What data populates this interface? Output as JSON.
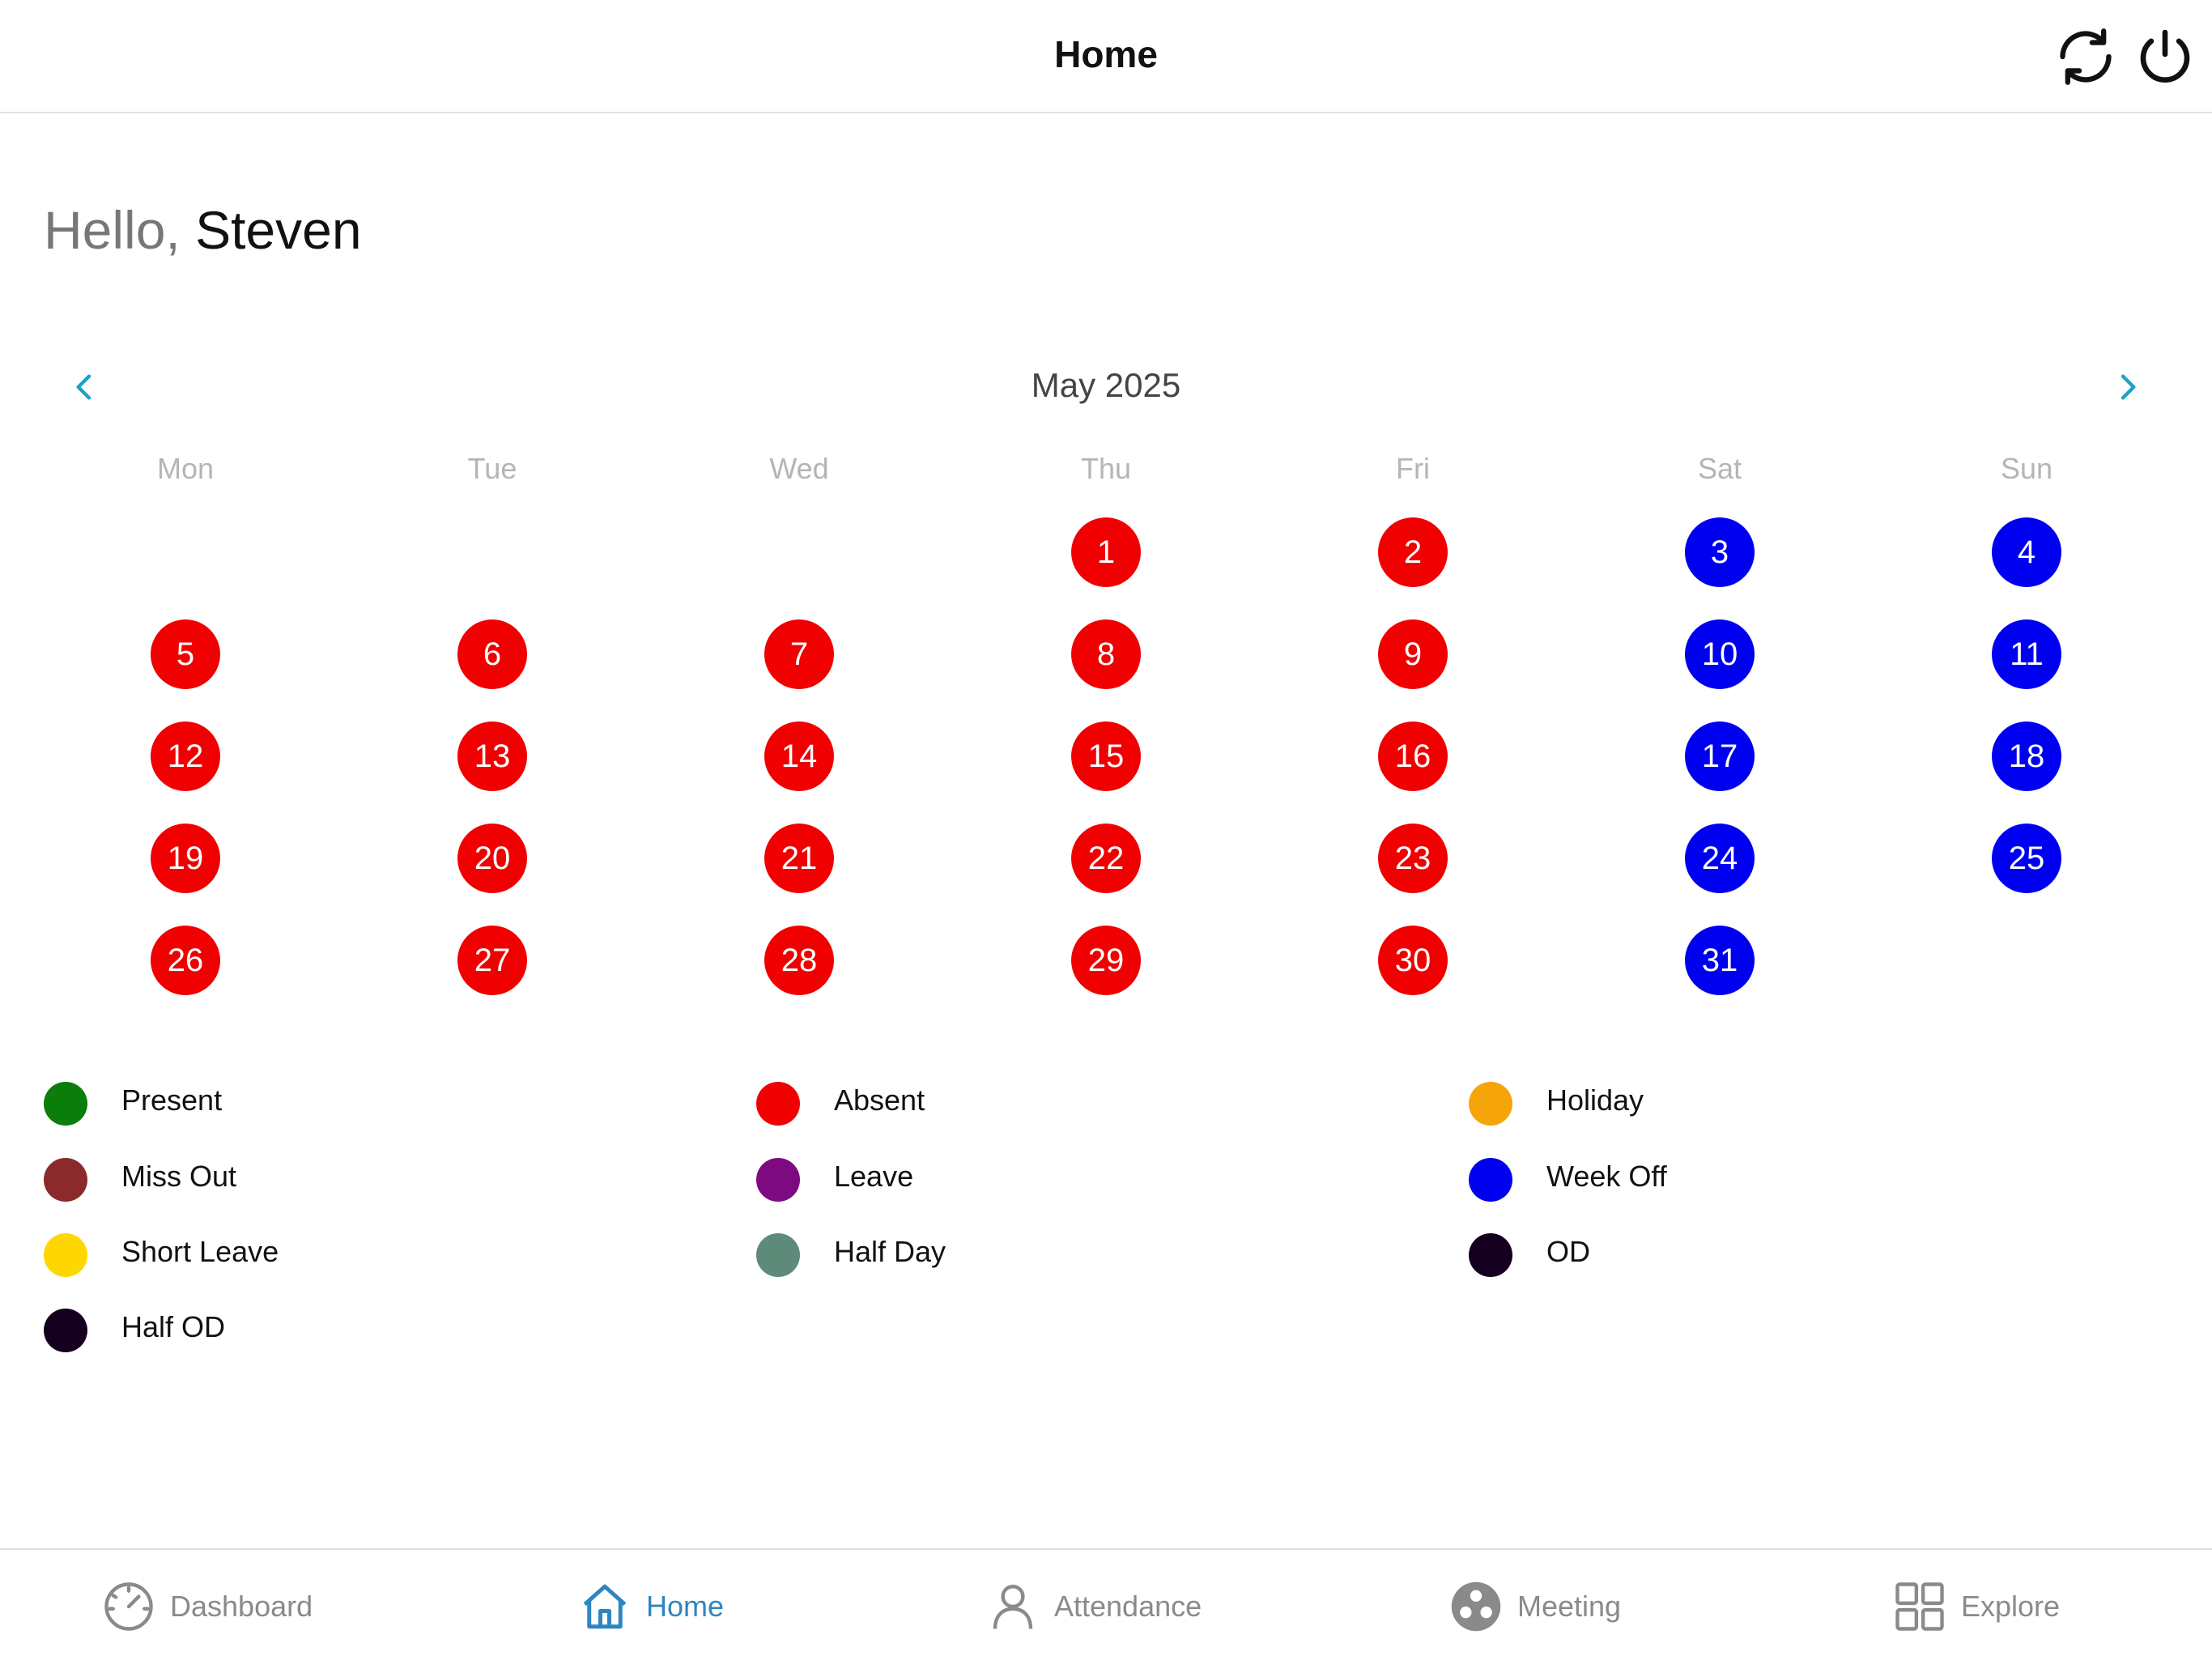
{
  "header": {
    "title": "Home"
  },
  "greeting": {
    "hello": "Hello, ",
    "name": "Steven"
  },
  "calendar": {
    "month_label": "May 2025",
    "weekdays": [
      "Mon",
      "Tue",
      "Wed",
      "Thu",
      "Fri",
      "Sat",
      "Sun"
    ],
    "first_weekday_index": 3,
    "days": [
      {
        "d": "1",
        "s": "absent"
      },
      {
        "d": "2",
        "s": "absent"
      },
      {
        "d": "3",
        "s": "weekoff"
      },
      {
        "d": "4",
        "s": "weekoff"
      },
      {
        "d": "5",
        "s": "absent"
      },
      {
        "d": "6",
        "s": "absent"
      },
      {
        "d": "7",
        "s": "absent"
      },
      {
        "d": "8",
        "s": "absent"
      },
      {
        "d": "9",
        "s": "absent"
      },
      {
        "d": "10",
        "s": "weekoff"
      },
      {
        "d": "11",
        "s": "weekoff"
      },
      {
        "d": "12",
        "s": "absent"
      },
      {
        "d": "13",
        "s": "absent"
      },
      {
        "d": "14",
        "s": "absent"
      },
      {
        "d": "15",
        "s": "absent"
      },
      {
        "d": "16",
        "s": "absent"
      },
      {
        "d": "17",
        "s": "weekoff"
      },
      {
        "d": "18",
        "s": "weekoff"
      },
      {
        "d": "19",
        "s": "absent"
      },
      {
        "d": "20",
        "s": "absent"
      },
      {
        "d": "21",
        "s": "absent"
      },
      {
        "d": "22",
        "s": "absent"
      },
      {
        "d": "23",
        "s": "absent"
      },
      {
        "d": "24",
        "s": "weekoff"
      },
      {
        "d": "25",
        "s": "weekoff"
      },
      {
        "d": "26",
        "s": "absent"
      },
      {
        "d": "27",
        "s": "absent"
      },
      {
        "d": "28",
        "s": "absent"
      },
      {
        "d": "29",
        "s": "absent"
      },
      {
        "d": "30",
        "s": "absent"
      },
      {
        "d": "31",
        "s": "weekoff"
      }
    ],
    "status_colors": {
      "absent": "#f00000",
      "weekoff": "#0000f0"
    }
  },
  "legend": [
    {
      "label": "Present",
      "color": "#0a7d0a"
    },
    {
      "label": "Absent",
      "color": "#f00000"
    },
    {
      "label": "Holiday",
      "color": "#f5a50a"
    },
    {
      "label": "Miss Out",
      "color": "#8b2a2a"
    },
    {
      "label": "Leave",
      "color": "#7d0a80"
    },
    {
      "label": "Week Off",
      "color": "#0000f0"
    },
    {
      "label": "Short Leave",
      "color": "#ffd700"
    },
    {
      "label": "Half Day",
      "color": "#5e8a7a"
    },
    {
      "label": "OD",
      "color": "#14001e"
    },
    {
      "label": "Half OD",
      "color": "#14001e"
    }
  ],
  "bottom_nav": [
    {
      "label": "Dashboard",
      "icon": "gauge-icon",
      "active": false
    },
    {
      "label": "Home",
      "icon": "home-icon",
      "active": true
    },
    {
      "label": "Attendance",
      "icon": "person-icon",
      "active": false
    },
    {
      "label": "Meeting",
      "icon": "meeting-icon",
      "active": false
    },
    {
      "label": "Explore",
      "icon": "grid-icon",
      "active": false
    }
  ],
  "colors": {
    "accent": "#2e86c1",
    "arrow": "#1aa3c8"
  }
}
